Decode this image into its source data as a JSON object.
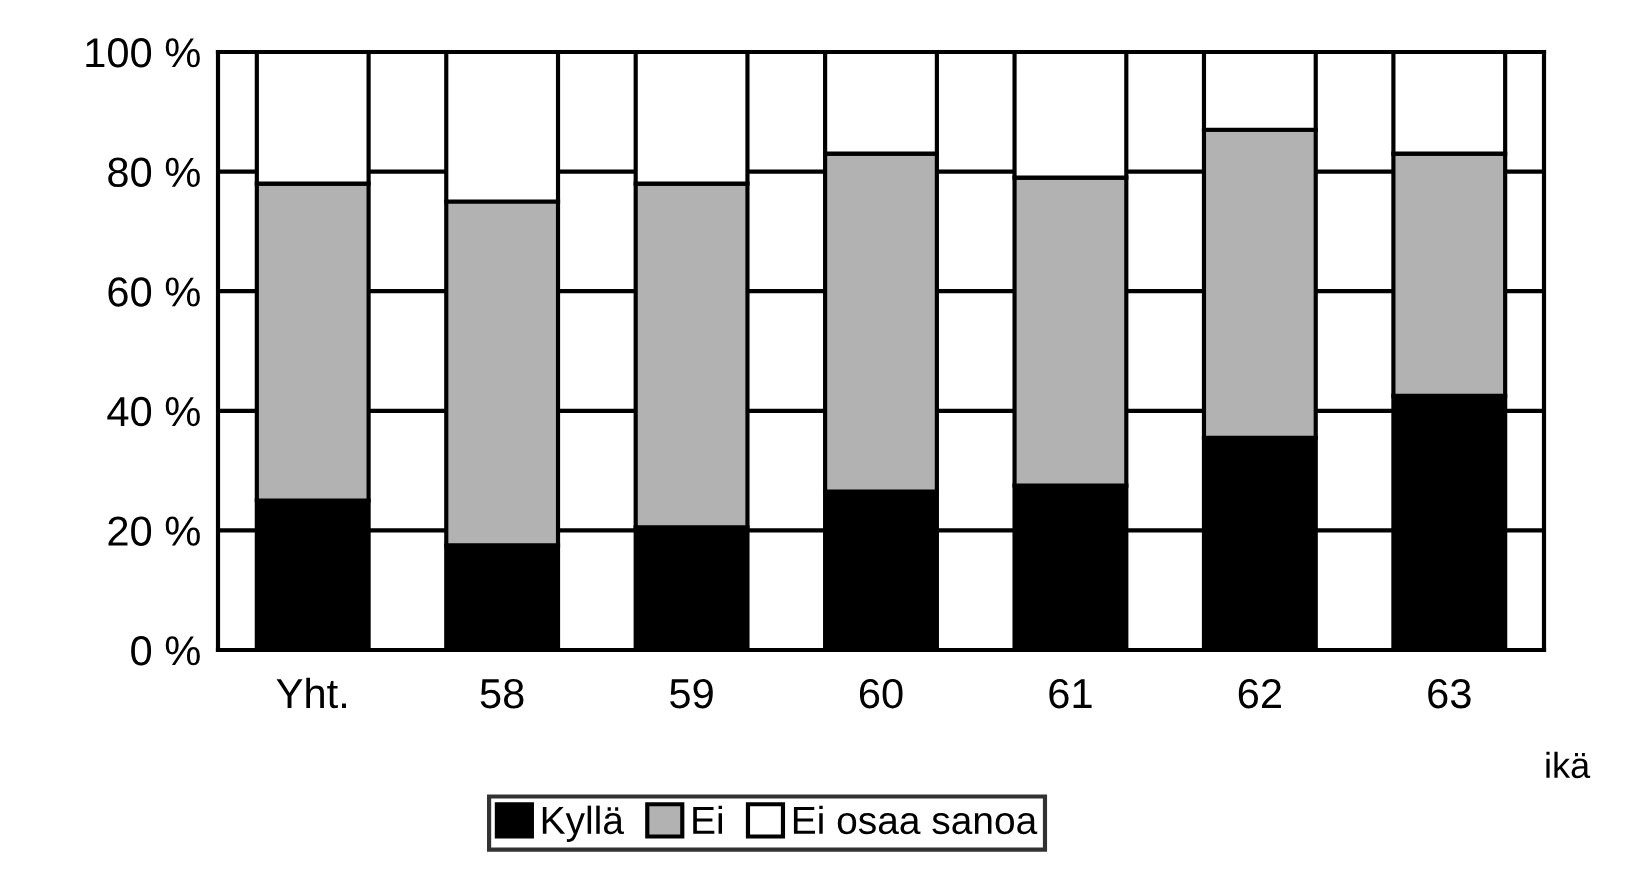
{
  "chart_data": {
    "type": "bar",
    "stacked": true,
    "xlabel": "ikä",
    "categories": [
      "Yht.",
      "58",
      "59",
      "60",
      "61",
      "62",
      "63"
    ],
    "series": [
      {
        "name": "Kyllä",
        "color": "#000000",
        "values": [
          25,
          17.5,
          20.5,
          26.5,
          27.5,
          35.5,
          42.5
        ]
      },
      {
        "name": "Ei",
        "color": "#b2b2b2",
        "values": [
          53,
          57.5,
          57.5,
          56.5,
          51.5,
          51.5,
          40.5
        ]
      },
      {
        "name": "Ei osaa sanoa",
        "color": "#ffffff",
        "values": [
          22,
          25,
          22,
          17,
          21,
          13,
          17
        ]
      }
    ],
    "ylim": [
      0,
      100
    ],
    "yticks": [
      {
        "value": 0,
        "label": "0 %"
      },
      {
        "value": 20,
        "label": "20 %"
      },
      {
        "value": 40,
        "label": "40 %"
      },
      {
        "value": 60,
        "label": "60 %"
      },
      {
        "value": 80,
        "label": "80 %"
      },
      {
        "value": 100,
        "label": "100 %"
      }
    ],
    "grid": "y",
    "legend": "bottom"
  }
}
